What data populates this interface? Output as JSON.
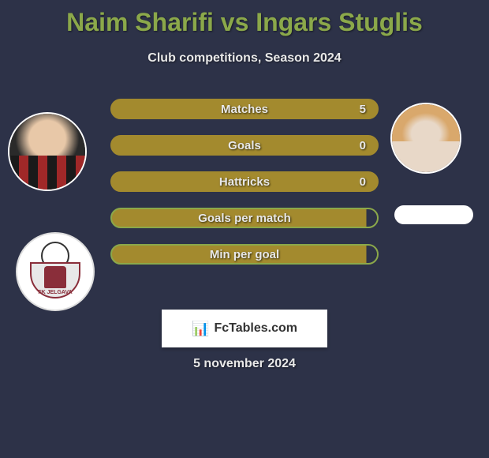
{
  "title": "Naim Sharifi vs Ingars Stuglis",
  "subtitle": "Club competitions, Season 2024",
  "bars": [
    {
      "label": "Matches",
      "value": "5",
      "border_color": "#a38a2e",
      "fill_color": "#a38a2e",
      "fill_pct": 100
    },
    {
      "label": "Goals",
      "value": "0",
      "border_color": "#a38a2e",
      "fill_color": "#a38a2e",
      "fill_pct": 100
    },
    {
      "label": "Hattricks",
      "value": "0",
      "border_color": "#a38a2e",
      "fill_color": "#a38a2e",
      "fill_pct": 100
    },
    {
      "label": "Goals per match",
      "value": "",
      "border_color": "#8ba84a",
      "fill_color": "#a38a2e",
      "fill_pct": 96
    },
    {
      "label": "Min per goal",
      "value": "",
      "border_color": "#8ba84a",
      "fill_color": "#a38a2e",
      "fill_pct": 96
    }
  ],
  "player_left": {
    "name": "Naim Sharifi",
    "face_bg_top": "#e8c8a8",
    "face_bg_bottom": "#1a1a1a",
    "jersey_stripe": "#a02828"
  },
  "player_right": {
    "name": "Ingars Stuglis",
    "face_bg_top": "#d9a86c",
    "face_bg_bottom": "#e8d8c8"
  },
  "club_logo": {
    "text": "FK JELGAVA",
    "shield_border": "#8a2e3a",
    "moose_color": "#8a2e3a"
  },
  "fctables_label": "FcTables.com",
  "date": "5 november 2024",
  "colors": {
    "background": "#2d3248",
    "title": "#8ba84a",
    "text": "#e8e8e8"
  }
}
